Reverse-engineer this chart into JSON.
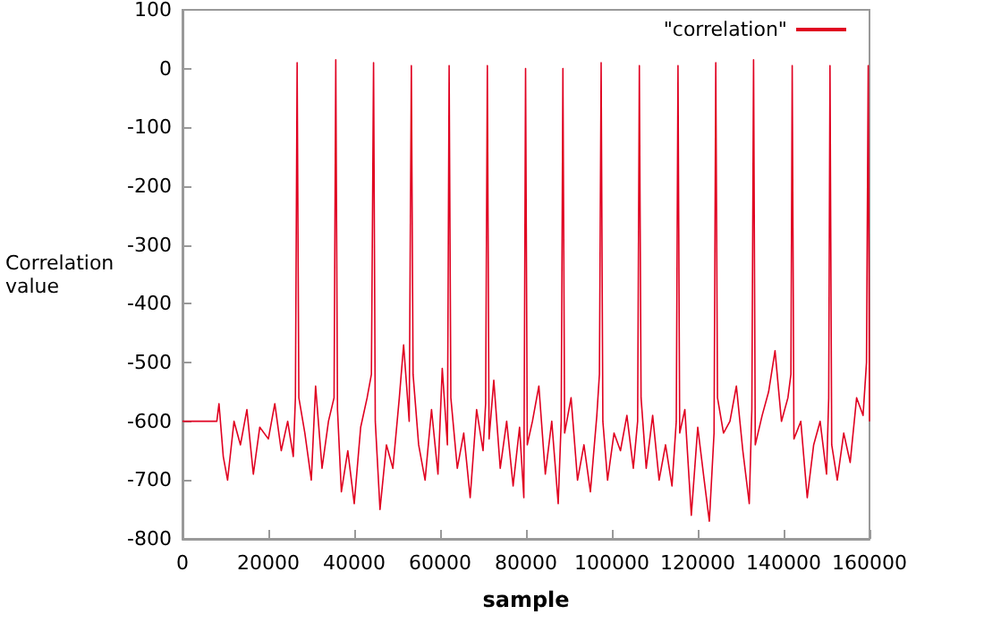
{
  "chart_data": {
    "type": "line",
    "xlabel": "sample",
    "ylabel": "Correlation\nvalue",
    "legend": "top right",
    "grid": false,
    "marker": "none",
    "line_style": "solid",
    "xlim": [
      0,
      160000
    ],
    "xticks": [
      0,
      20000,
      40000,
      60000,
      80000,
      100000,
      120000,
      140000,
      160000
    ],
    "ylim": [
      -800,
      100
    ],
    "yticks": [
      -800,
      -700,
      -600,
      -500,
      -400,
      -300,
      -200,
      -100,
      0,
      100
    ],
    "series": [
      {
        "name": "\"correlation\"",
        "color": "#e00020",
        "x": [
          0,
          8000,
          8500,
          9500,
          10500,
          12000,
          13500,
          15000,
          16500,
          18000,
          20000,
          21500,
          23000,
          24500,
          25800,
          26300,
          26700,
          27100,
          28500,
          30000,
          31000,
          32500,
          34000,
          35300,
          35700,
          36100,
          37000,
          38500,
          40000,
          41500,
          43000,
          44000,
          44500,
          44900,
          46000,
          47500,
          49000,
          50500,
          51500,
          52800,
          53300,
          53700,
          55000,
          56500,
          58000,
          59500,
          60500,
          61700,
          62100,
          62500,
          64000,
          65500,
          67000,
          68500,
          70000,
          70600,
          71000,
          71400,
          72500,
          74000,
          75500,
          77000,
          78500,
          79500,
          79900,
          80300,
          81500,
          83000,
          84500,
          86000,
          87500,
          88200,
          88600,
          89000,
          90500,
          92000,
          93500,
          95000,
          96500,
          97100,
          97500,
          97900,
          99000,
          100500,
          102000,
          103500,
          105000,
          106000,
          106400,
          106800,
          108000,
          109500,
          111000,
          112500,
          114000,
          115000,
          115400,
          115800,
          117000,
          118500,
          120000,
          121500,
          122700,
          123800,
          124200,
          124600,
          126000,
          127500,
          129000,
          130500,
          132000,
          132600,
          133000,
          133400,
          135000,
          136500,
          138000,
          139500,
          141000,
          141700,
          142000,
          142400,
          144000,
          145500,
          147000,
          148500,
          150000,
          150500,
          150800,
          151200,
          152500,
          154000,
          155500,
          157000,
          158500,
          159300,
          159700,
          160000
        ],
        "values": [
          -600,
          -600,
          -570,
          -660,
          -700,
          -600,
          -640,
          -580,
          -690,
          -610,
          -630,
          -570,
          -650,
          -600,
          -660,
          -560,
          10,
          -560,
          -620,
          -700,
          -540,
          -680,
          -600,
          -560,
          15,
          -580,
          -720,
          -650,
          -740,
          -610,
          -560,
          -520,
          10,
          -600,
          -750,
          -640,
          -680,
          -560,
          -470,
          -600,
          5,
          -520,
          -640,
          -700,
          -580,
          -690,
          -510,
          -640,
          5,
          -560,
          -680,
          -620,
          -730,
          -580,
          -650,
          -570,
          5,
          -630,
          -530,
          -680,
          -600,
          -710,
          -610,
          -730,
          0,
          -640,
          -600,
          -540,
          -690,
          -600,
          -740,
          -600,
          0,
          -620,
          -560,
          -700,
          -640,
          -720,
          -590,
          -520,
          10,
          -600,
          -700,
          -620,
          -650,
          -590,
          -680,
          -600,
          5,
          -560,
          -680,
          -590,
          -700,
          -640,
          -710,
          -600,
          5,
          -620,
          -580,
          -760,
          -610,
          -700,
          -770,
          -620,
          10,
          -560,
          -620,
          -600,
          -540,
          -650,
          -740,
          -580,
          15,
          -640,
          -590,
          -550,
          -480,
          -600,
          -560,
          -520,
          5,
          -630,
          -600,
          -730,
          -640,
          -600,
          -690,
          -560,
          5,
          -640,
          -700,
          -620,
          -670,
          -560,
          -590,
          -500,
          5,
          -600
        ]
      }
    ]
  }
}
